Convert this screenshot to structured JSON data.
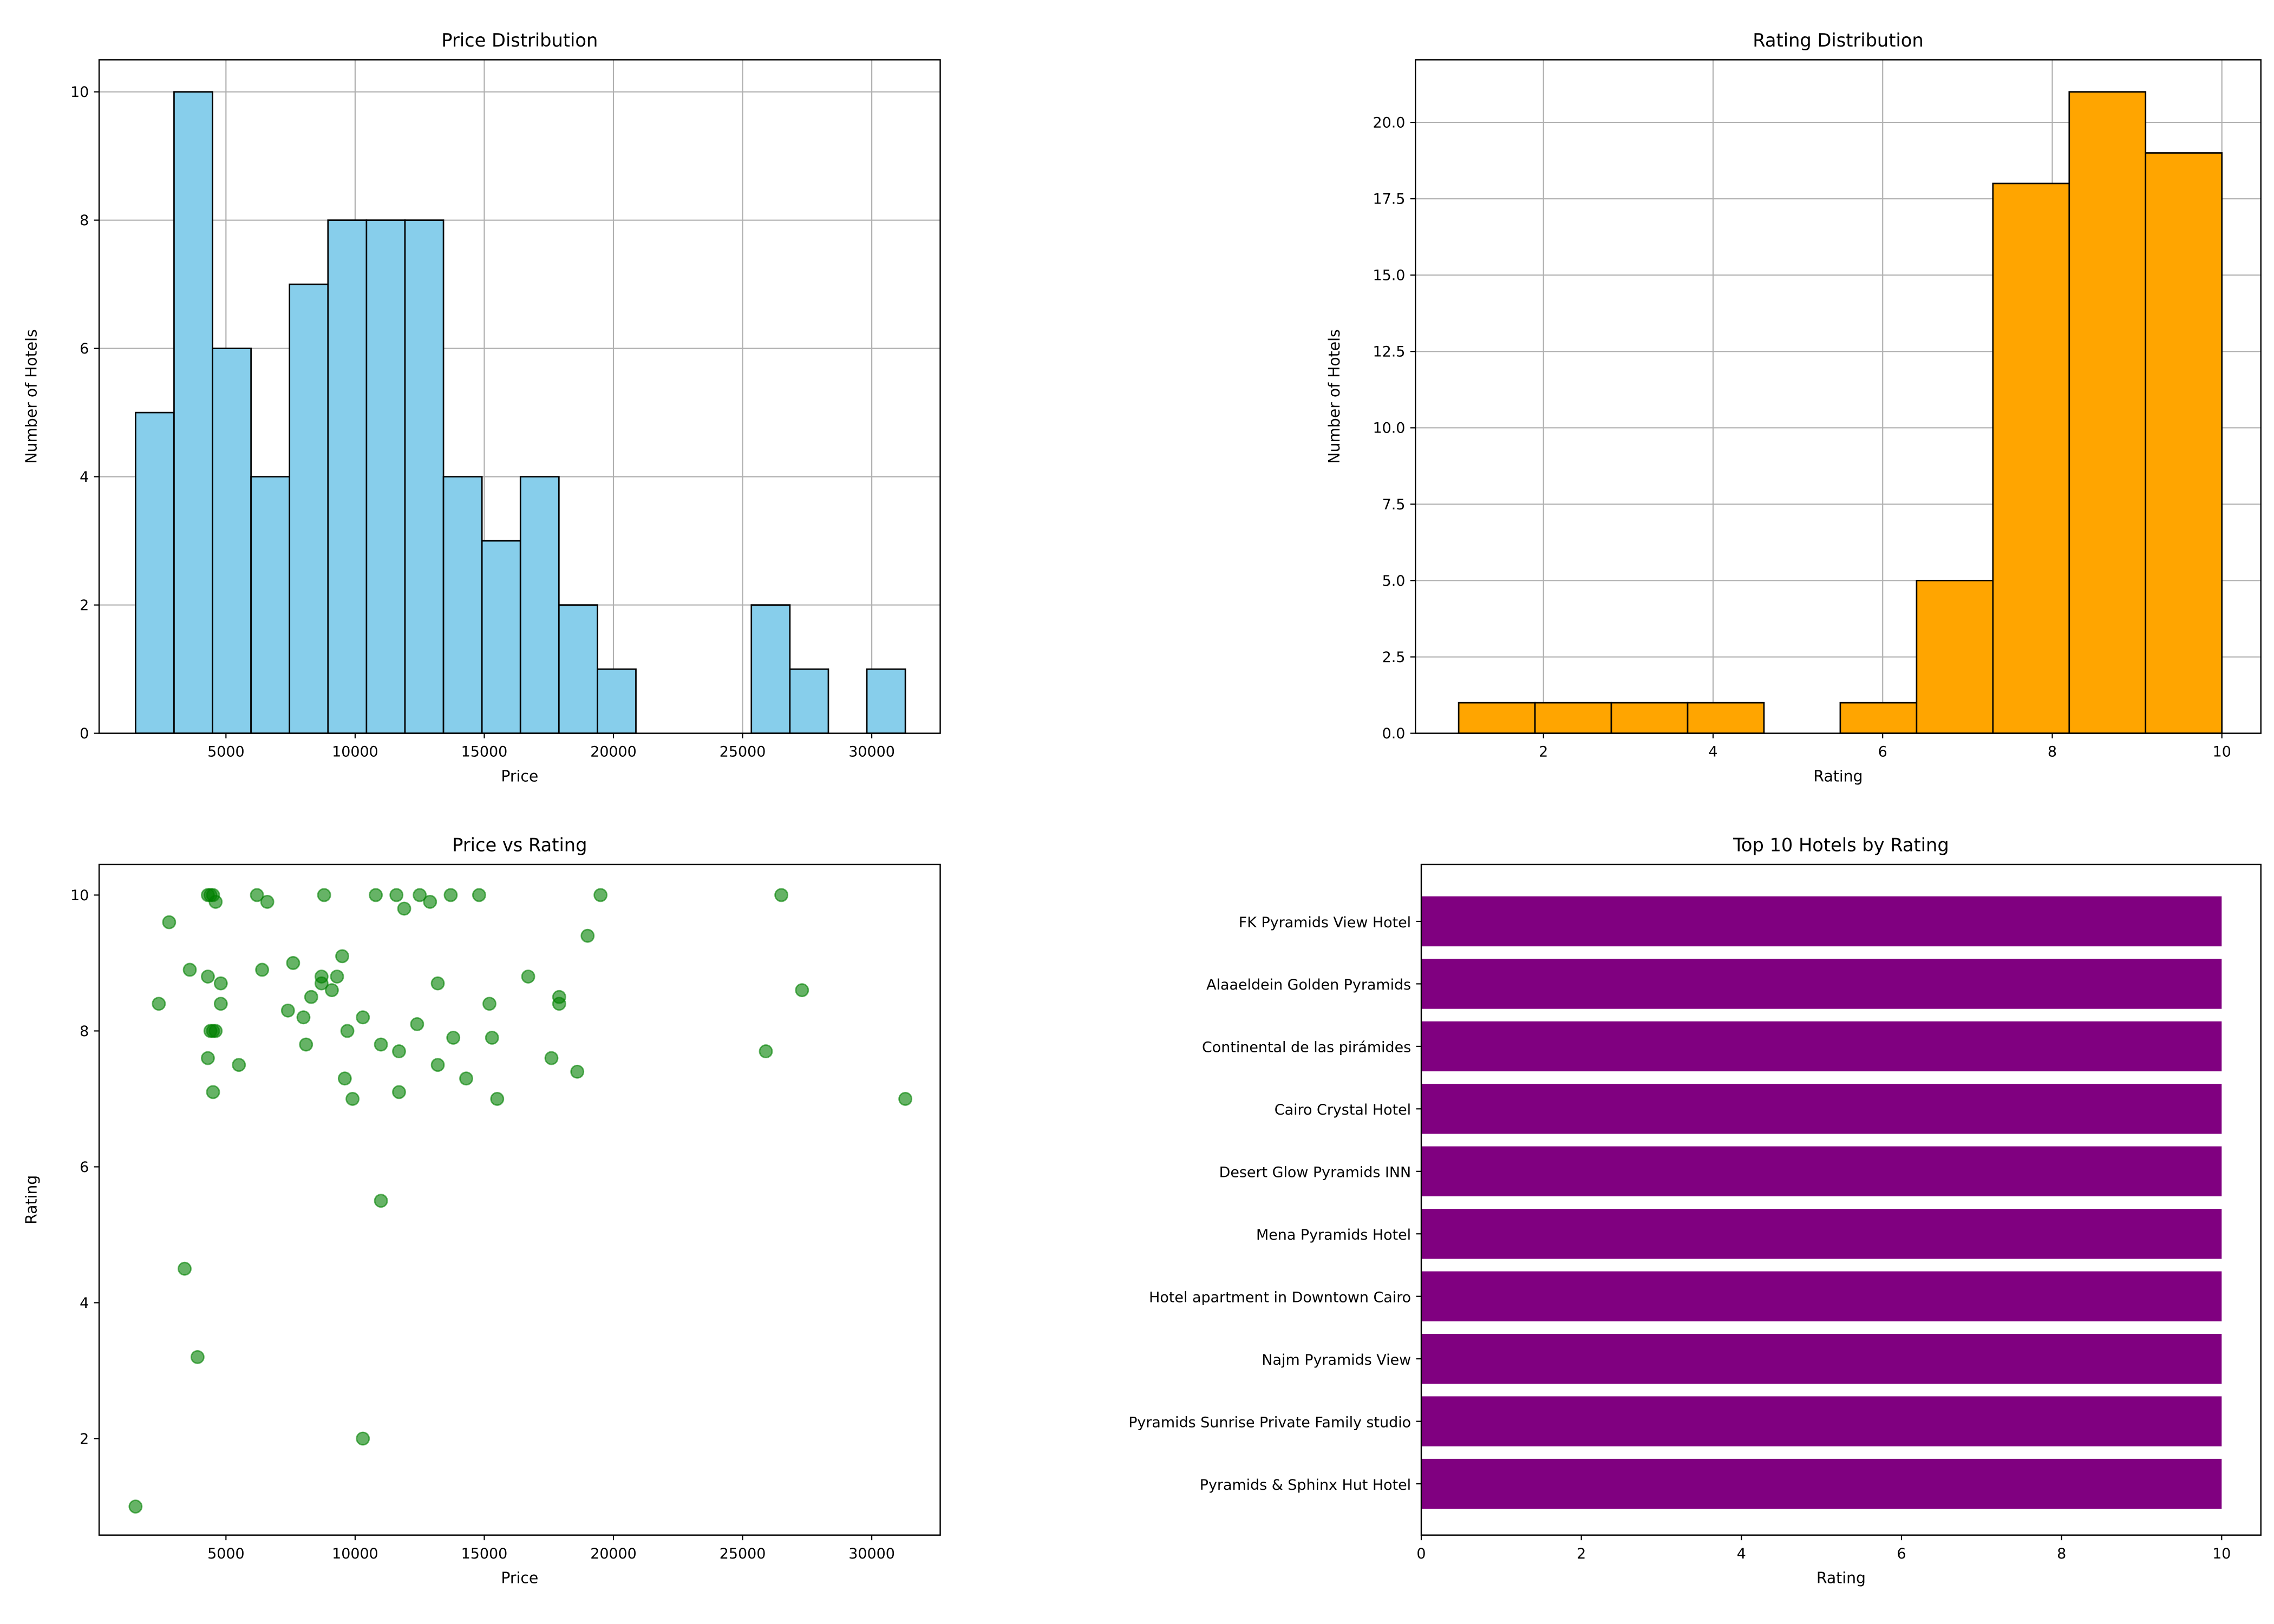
{
  "chart_data": [
    {
      "type": "bar",
      "title": "Price Distribution",
      "xlabel": "Price",
      "ylabel": "Number of Hotels",
      "bin_start": 1500,
      "bin_width": 1490,
      "counts": [
        5,
        10,
        6,
        4,
        7,
        8,
        8,
        8,
        4,
        3,
        4,
        2,
        1,
        0,
        0,
        0,
        2,
        1,
        0,
        1
      ],
      "xlim": [
        90,
        32650
      ],
      "ylim": [
        0,
        10.5
      ],
      "xticks": [
        5000,
        10000,
        15000,
        20000,
        25000,
        30000
      ],
      "yticks": [
        0,
        2,
        4,
        6,
        8,
        10
      ],
      "grid": true,
      "color": "#87ceeb",
      "edge_color": "#000000"
    },
    {
      "type": "bar",
      "title": "Rating Distribution",
      "xlabel": "Rating",
      "ylabel": "Number of Hotels",
      "bin_start": 1.0,
      "bin_width": 0.9,
      "counts": [
        1,
        1,
        1,
        1,
        0,
        1,
        5,
        18,
        21,
        19
      ],
      "xlim": [
        0.49,
        10.46
      ],
      "ylim": [
        0,
        22.05
      ],
      "xticks": [
        2,
        4,
        6,
        8,
        10
      ],
      "yticks": [
        "0.0",
        "2.5",
        "5.0",
        "7.5",
        "10.0",
        "12.5",
        "15.0",
        "17.5",
        "20.0"
      ],
      "grid": true,
      "color": "#ffa500",
      "edge_color": "#000000"
    },
    {
      "type": "scatter",
      "title": "Price vs Rating",
      "xlabel": "Price",
      "ylabel": "Rating",
      "xlim": [
        90,
        32650
      ],
      "ylim": [
        0.58,
        10.45
      ],
      "xticks": [
        5000,
        10000,
        15000,
        20000,
        25000,
        30000
      ],
      "yticks": [
        2,
        4,
        6,
        8,
        10
      ],
      "grid": false,
      "color": "#008000",
      "points": [
        [
          1500,
          1.0
        ],
        [
          2400,
          8.4
        ],
        [
          2800,
          9.6
        ],
        [
          3400,
          4.5
        ],
        [
          3600,
          8.9
        ],
        [
          3900,
          3.2
        ],
        [
          4300,
          10
        ],
        [
          4400,
          10
        ],
        [
          4500,
          10
        ],
        [
          4600,
          9.9
        ],
        [
          4300,
          8.8
        ],
        [
          4300,
          7.6
        ],
        [
          4400,
          8.0
        ],
        [
          4500,
          8.0
        ],
        [
          4600,
          8.0
        ],
        [
          4800,
          8.7
        ],
        [
          4800,
          8.4
        ],
        [
          4500,
          7.1
        ],
        [
          5500,
          7.5
        ],
        [
          6200,
          10
        ],
        [
          6600,
          9.9
        ],
        [
          6400,
          8.9
        ],
        [
          7400,
          8.3
        ],
        [
          7600,
          9.0
        ],
        [
          8000,
          8.2
        ],
        [
          8100,
          7.8
        ],
        [
          8300,
          8.5
        ],
        [
          8700,
          8.8
        ],
        [
          8700,
          8.7
        ],
        [
          8800,
          10
        ],
        [
          9100,
          8.6
        ],
        [
          9300,
          8.8
        ],
        [
          9500,
          9.1
        ],
        [
          9600,
          7.3
        ],
        [
          9700,
          8.0
        ],
        [
          9900,
          7.0
        ],
        [
          10300,
          8.2
        ],
        [
          10300,
          2.0
        ],
        [
          10800,
          10
        ],
        [
          11000,
          7.8
        ],
        [
          11000,
          5.5
        ],
        [
          11600,
          10
        ],
        [
          11700,
          7.7
        ],
        [
          11700,
          7.1
        ],
        [
          11900,
          9.8
        ],
        [
          12400,
          8.1
        ],
        [
          12500,
          10
        ],
        [
          12900,
          9.9
        ],
        [
          13200,
          8.7
        ],
        [
          13200,
          7.5
        ],
        [
          13700,
          10
        ],
        [
          13800,
          7.9
        ],
        [
          14300,
          7.3
        ],
        [
          14800,
          10
        ],
        [
          15200,
          8.4
        ],
        [
          15300,
          7.9
        ],
        [
          15500,
          7.0
        ],
        [
          16700,
          8.8
        ],
        [
          17600,
          7.6
        ],
        [
          17900,
          8.5
        ],
        [
          17900,
          8.4
        ],
        [
          18600,
          7.4
        ],
        [
          19000,
          9.4
        ],
        [
          19500,
          10
        ],
        [
          25900,
          7.7
        ],
        [
          26500,
          10
        ],
        [
          27300,
          8.6
        ],
        [
          31300,
          7.0
        ]
      ]
    },
    {
      "type": "bar",
      "orientation": "horizontal",
      "title": "Top 10 Hotels by Rating",
      "xlabel": "Rating",
      "ylabel": "",
      "categories": [
        "Pyramids & Sphinx Hut Hotel",
        "Pyramids Sunrise Private Family studio",
        "Najm Pyramids View",
        "Hotel apartment in Downtown Cairo",
        "Mena Pyramids Hotel",
        "Desert Glow Pyramids INN",
        "Cairo Crystal Hotel",
        "Continental de las pirámides",
        "Alaaeldein Golden Pyramids",
        "FK Pyramids View Hotel"
      ],
      "values": [
        10,
        10,
        10,
        10,
        10,
        10,
        10,
        10,
        10,
        10
      ],
      "xlim": [
        0,
        10.49
      ],
      "xticks": [
        0,
        2,
        4,
        6,
        8,
        10
      ],
      "grid": false,
      "color": "#800080"
    }
  ]
}
